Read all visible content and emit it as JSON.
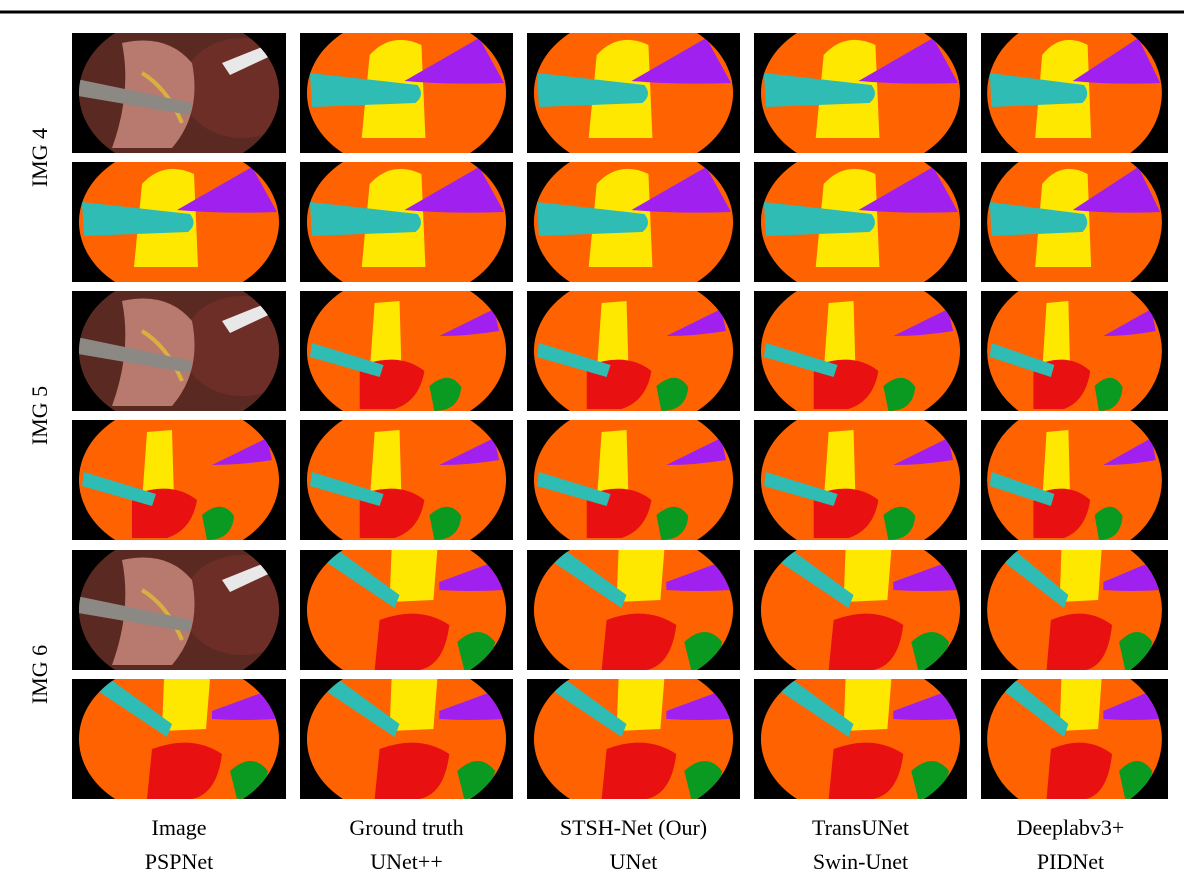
{
  "row_labels": [
    "IMG 4",
    "IMG 5",
    "IMG 6"
  ],
  "captions": [
    [
      "Image",
      "PSPNet"
    ],
    [
      "Ground truth",
      "UNet++"
    ],
    [
      "STSH-Net (Our)",
      "UNet"
    ],
    [
      "TransUNet",
      "Swin-Unet"
    ],
    [
      "Deeplabv3+",
      "PIDNet"
    ]
  ]
}
